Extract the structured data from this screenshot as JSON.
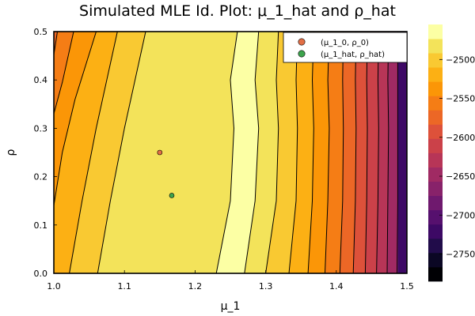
{
  "chart_data": {
    "type": "contour",
    "title": "Simulated MLE Id. Plot: μ_1_hat and ρ_hat",
    "xlabel": "μ_1",
    "ylabel": "ρ",
    "xlim": [
      1.0,
      1.5
    ],
    "ylim": [
      0.0,
      0.5
    ],
    "x_ticks": [
      {
        "value": 1.0,
        "label": "1.0"
      },
      {
        "value": 1.1,
        "label": "1.1"
      },
      {
        "value": 1.2,
        "label": "1.2"
      },
      {
        "value": 1.3,
        "label": "1.3"
      },
      {
        "value": 1.4,
        "label": "1.4"
      },
      {
        "value": 1.5,
        "label": "1.5"
      }
    ],
    "y_ticks": [
      {
        "value": 0.0,
        "label": "0.0"
      },
      {
        "value": 0.1,
        "label": "0.1"
      },
      {
        "value": 0.2,
        "label": "0.2"
      },
      {
        "value": 0.3,
        "label": "0.3"
      },
      {
        "value": 0.4,
        "label": "0.4"
      },
      {
        "value": 0.5,
        "label": "0.5"
      }
    ],
    "colorbar": {
      "range": [
        -2785,
        -2455
      ],
      "ticks": [
        {
          "value": -2500,
          "label": "−2500"
        },
        {
          "value": -2550,
          "label": "−2550"
        },
        {
          "value": -2600,
          "label": "−2600"
        },
        {
          "value": -2650,
          "label": "−2650"
        },
        {
          "value": -2700,
          "label": "−2700"
        },
        {
          "value": -2750,
          "label": "−2750"
        }
      ],
      "bands": [
        "#000004",
        "#0b0724",
        "#210c4a",
        "#3d0965",
        "#56106e",
        "#6f196e",
        "#88226a",
        "#a02a63",
        "#b73557",
        "#cb4149",
        "#dd513a",
        "#ec6726",
        "#f57d15",
        "#fb9607",
        "#fcb014",
        "#f9c932",
        "#f3e35a",
        "#fcffa4"
      ]
    },
    "grid": true,
    "legend_position": "top-right",
    "series": [
      {
        "name": "(μ_1_0, ρ_0)",
        "type": "scatter",
        "x": [
          1.15
        ],
        "y": [
          0.25
        ],
        "color": "#e26f46"
      },
      {
        "name": "(μ_1_hat, ρ_hat)",
        "type": "scatter",
        "x": [
          1.167
        ],
        "y": [
          0.161
        ],
        "color": "#3da44d"
      }
    ],
    "contour_levels": [
      {
        "level": 1,
        "curve": [
          [
            1.0,
            0.452
          ],
          [
            1.005,
            0.5
          ]
        ],
        "fill_between": null
      },
      {
        "level": 2,
        "curve": [
          [
            1.0,
            0.33
          ],
          [
            1.012,
            0.395
          ],
          [
            1.028,
            0.5
          ]
        ]
      },
      {
        "level": 3,
        "curve": [
          [
            1.0,
            0.14
          ],
          [
            1.012,
            0.25
          ],
          [
            1.03,
            0.36
          ],
          [
            1.06,
            0.5
          ]
        ]
      },
      {
        "level": 4,
        "curve": [
          [
            1.022,
            0.0
          ],
          [
            1.04,
            0.15
          ],
          [
            1.06,
            0.3
          ],
          [
            1.09,
            0.5
          ]
        ]
      },
      {
        "level": 5,
        "curve": [
          [
            1.062,
            0.0
          ],
          [
            1.08,
            0.15
          ],
          [
            1.1,
            0.3
          ],
          [
            1.13,
            0.5
          ]
        ]
      },
      {
        "level": 6,
        "curve": [
          [
            1.23,
            0.0
          ],
          [
            1.25,
            0.15
          ],
          [
            1.255,
            0.3
          ],
          [
            1.25,
            0.4
          ],
          [
            1.26,
            0.5
          ]
        ]
      },
      {
        "level": 7,
        "curve": [
          [
            1.27,
            0.0
          ],
          [
            1.285,
            0.15
          ],
          [
            1.29,
            0.3
          ],
          [
            1.285,
            0.4
          ],
          [
            1.29,
            0.5
          ]
        ]
      },
      {
        "level": 8,
        "curve": [
          [
            1.3,
            0.0
          ],
          [
            1.315,
            0.15
          ],
          [
            1.318,
            0.3
          ],
          [
            1.315,
            0.4
          ],
          [
            1.318,
            0.5
          ]
        ]
      },
      {
        "level": 9,
        "curve": [
          [
            1.333,
            0.0
          ],
          [
            1.343,
            0.15
          ],
          [
            1.345,
            0.3
          ],
          [
            1.343,
            0.4
          ],
          [
            1.345,
            0.5
          ]
        ]
      },
      {
        "level": 10,
        "curve": [
          [
            1.36,
            0.0
          ],
          [
            1.366,
            0.15
          ],
          [
            1.368,
            0.3
          ],
          [
            1.366,
            0.4
          ],
          [
            1.368,
            0.5
          ]
        ]
      },
      {
        "level": 11,
        "curve": [
          [
            1.384,
            0.0
          ],
          [
            1.388,
            0.15
          ],
          [
            1.39,
            0.3
          ],
          [
            1.388,
            0.4
          ],
          [
            1.39,
            0.5
          ]
        ]
      },
      {
        "level": 12,
        "curve": [
          [
            1.405,
            0.0
          ],
          [
            1.409,
            0.15
          ],
          [
            1.41,
            0.3
          ],
          [
            1.409,
            0.4
          ],
          [
            1.41,
            0.5
          ]
        ]
      },
      {
        "level": 13,
        "curve": [
          [
            1.424,
            0.0
          ],
          [
            1.427,
            0.15
          ],
          [
            1.428,
            0.3
          ],
          [
            1.427,
            0.4
          ],
          [
            1.428,
            0.5
          ]
        ]
      },
      {
        "level": 14,
        "curve": [
          [
            1.441,
            0.0
          ],
          [
            1.443,
            0.15
          ],
          [
            1.444,
            0.3
          ],
          [
            1.443,
            0.4
          ],
          [
            1.444,
            0.5
          ]
        ]
      },
      {
        "level": 15,
        "curve": [
          [
            1.457,
            0.0
          ],
          [
            1.459,
            0.15
          ],
          [
            1.46,
            0.3
          ],
          [
            1.459,
            0.4
          ],
          [
            1.46,
            0.5
          ]
        ]
      },
      {
        "level": 16,
        "curve": [
          [
            1.472,
            0.0
          ],
          [
            1.473,
            0.15
          ],
          [
            1.474,
            0.3
          ],
          [
            1.473,
            0.4
          ],
          [
            1.474,
            0.5
          ]
        ]
      },
      {
        "level": 17,
        "curve": [
          [
            1.486,
            0.0
          ],
          [
            1.487,
            0.15
          ],
          [
            1.487,
            0.3
          ],
          [
            1.487,
            0.4
          ],
          [
            1.487,
            0.5
          ]
        ]
      }
    ]
  }
}
